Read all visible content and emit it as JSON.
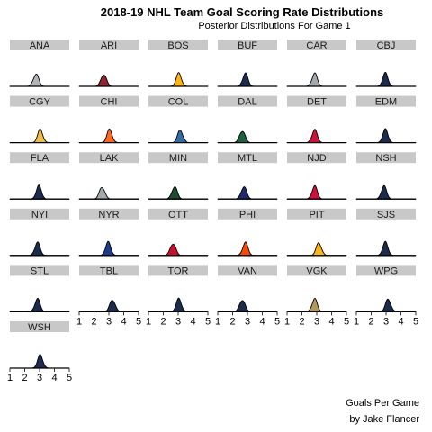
{
  "title": "2018-19 NHL Team Goal Scoring Rate Distributions",
  "subtitle": "Posterior Distributions For Game 1",
  "caption_line1": "Goals Per Game",
  "caption_line2": "by Jake Flancer",
  "colors": {
    "strip_bg": "#c8c8c8",
    "baseline": "#000000",
    "background": "#ffffff"
  },
  "chart_data": {
    "type": "area",
    "title": "2018-19 NHL Team Goal Scoring Rate Distributions",
    "subtitle": "Posterior Distributions For Game 1",
    "xlabel": "Goals Per Game",
    "xlim": [
      1,
      5
    ],
    "xticks": [
      1,
      2,
      3,
      4,
      5
    ],
    "facet_cols": 6,
    "grid": false,
    "panels": [
      {
        "team": "ANA",
        "mean": 2.75,
        "color": "#b0b4b6"
      },
      {
        "team": "ARI",
        "mean": 2.65,
        "color": "#8c2633"
      },
      {
        "team": "BOS",
        "mean": 3.05,
        "color": "#fcb514"
      },
      {
        "team": "BUF",
        "mean": 2.85,
        "color": "#1d2b4c"
      },
      {
        "team": "CAR",
        "mean": 2.85,
        "color": "#a4a9ad"
      },
      {
        "team": "CBJ",
        "mean": 2.95,
        "color": "#1d2b4c"
      },
      {
        "team": "CGY",
        "mean": 3.05,
        "color": "#f1be48"
      },
      {
        "team": "CHI",
        "mean": 3.05,
        "color": "#ff671f"
      },
      {
        "team": "COL",
        "mean": 3.15,
        "color": "#346ca4"
      },
      {
        "team": "DAL",
        "mean": 2.65,
        "color": "#1e6140"
      },
      {
        "team": "DET",
        "mean": 2.85,
        "color": "#ce1138"
      },
      {
        "team": "EDM",
        "mean": 2.95,
        "color": "#1d2b4c"
      },
      {
        "team": "FLA",
        "mean": 2.95,
        "color": "#1d2b4c"
      },
      {
        "team": "LAK",
        "mean": 2.55,
        "color": "#a4a9ad"
      },
      {
        "team": "MIN",
        "mean": 2.75,
        "color": "#1e4d34"
      },
      {
        "team": "MTL",
        "mean": 2.75,
        "color": "#1d2b6c"
      },
      {
        "team": "NJD",
        "mean": 2.85,
        "color": "#ce1138"
      },
      {
        "team": "NSH",
        "mean": 2.85,
        "color": "#1d2b4c"
      },
      {
        "team": "NYI",
        "mean": 2.85,
        "color": "#1d2b4c"
      },
      {
        "team": "NYR",
        "mean": 2.95,
        "color": "#1e3a8a"
      },
      {
        "team": "OTT",
        "mean": 2.65,
        "color": "#c8102e"
      },
      {
        "team": "PHI",
        "mean": 2.85,
        "color": "#f74902"
      },
      {
        "team": "PIT",
        "mean": 3.15,
        "color": "#fcb514"
      },
      {
        "team": "SJS",
        "mean": 2.95,
        "color": "#1d2b4c"
      },
      {
        "team": "STL",
        "mean": 2.85,
        "color": "#1d2b4c"
      },
      {
        "team": "TBL",
        "mean": 3.25,
        "color": "#1d2b4c"
      },
      {
        "team": "TOR",
        "mean": 3.05,
        "color": "#1d2b4c"
      },
      {
        "team": "VAN",
        "mean": 2.65,
        "color": "#1d2b4c"
      },
      {
        "team": "VGK",
        "mean": 2.85,
        "color": "#b4975a"
      },
      {
        "team": "WPG",
        "mean": 3.15,
        "color": "#1d2b4c"
      },
      {
        "team": "WSH",
        "mean": 3.05,
        "color": "#1d2b4c"
      }
    ]
  }
}
